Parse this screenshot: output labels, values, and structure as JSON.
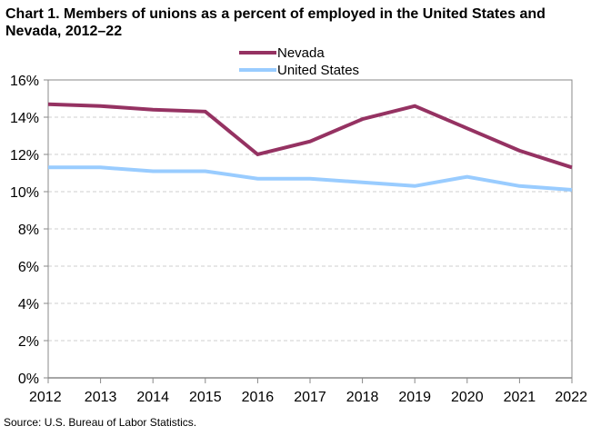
{
  "chart_data": {
    "type": "line",
    "title": "Chart 1. Members of unions as a percent of employed in the United States and Nevada, 2012–22",
    "source": "Source: U.S. Bureau of Labor Statistics.",
    "xlabel": "",
    "ylabel": "",
    "categories": [
      "2012",
      "2013",
      "2014",
      "2015",
      "2016",
      "2017",
      "2018",
      "2019",
      "2020",
      "2021",
      "2022"
    ],
    "ylim": [
      0,
      16
    ],
    "y_ticks": [
      "0%",
      "2%",
      "4%",
      "6%",
      "8%",
      "10%",
      "12%",
      "14%",
      "16%"
    ],
    "grid": "horizontal dashed",
    "legend_position": "top-center",
    "series": [
      {
        "name": "Nevada",
        "color": "#953262",
        "values": [
          14.7,
          14.6,
          14.4,
          14.3,
          12.0,
          12.7,
          13.9,
          14.6,
          13.4,
          12.2,
          11.3
        ]
      },
      {
        "name": "United States",
        "color": "#99ccff",
        "values": [
          11.3,
          11.3,
          11.1,
          11.1,
          10.7,
          10.7,
          10.5,
          10.3,
          10.8,
          10.3,
          10.1
        ]
      }
    ]
  }
}
